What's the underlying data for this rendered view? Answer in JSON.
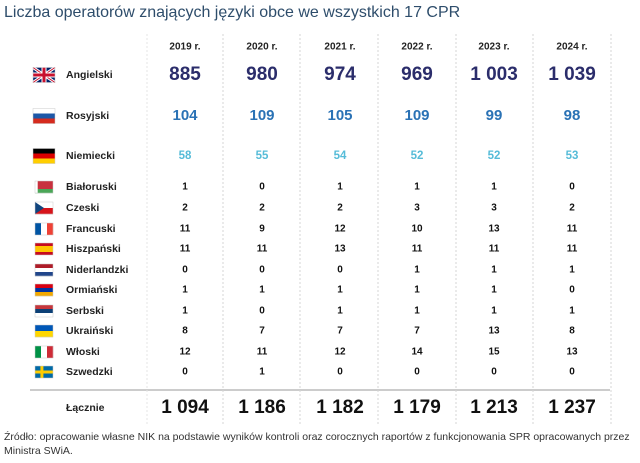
{
  "title": "Liczba operatorów znających języki obce we wszystkich 17 CPR",
  "table": {
    "columns": [
      "2019 r.",
      "2020 r.",
      "2021 r.",
      "2022 r.",
      "2023 r.",
      "2024 r."
    ],
    "rows": [
      {
        "label": "Angielski",
        "cells": [
          "885",
          "980",
          "974",
          "969",
          "1 003",
          "1 039"
        ]
      },
      {
        "label": "Rosyjski",
        "cells": [
          "104",
          "109",
          "105",
          "109",
          "99",
          "98"
        ]
      },
      {
        "label": "Niemiecki",
        "cells": [
          "58",
          "55",
          "54",
          "52",
          "52",
          "53"
        ]
      },
      {
        "label": "Białoruski",
        "cells": [
          "1",
          "0",
          "1",
          "1",
          "1",
          "0"
        ]
      },
      {
        "label": "Czeski",
        "cells": [
          "2",
          "2",
          "2",
          "3",
          "3",
          "2"
        ]
      },
      {
        "label": "Francuski",
        "cells": [
          "11",
          "9",
          "12",
          "10",
          "13",
          "11"
        ]
      },
      {
        "label": "Hiszpański",
        "cells": [
          "11",
          "11",
          "13",
          "11",
          "11",
          "11"
        ]
      },
      {
        "label": "Niderlandzki",
        "cells": [
          "0",
          "0",
          "0",
          "1",
          "1",
          "1"
        ]
      },
      {
        "label": "Ormiański",
        "cells": [
          "1",
          "1",
          "1",
          "1",
          "1",
          "0"
        ]
      },
      {
        "label": "Serbski",
        "cells": [
          "1",
          "0",
          "1",
          "1",
          "1",
          "1"
        ]
      },
      {
        "label": "Ukraiński",
        "cells": [
          "8",
          "7",
          "7",
          "7",
          "13",
          "8"
        ]
      },
      {
        "label": "Włoski",
        "cells": [
          "12",
          "11",
          "12",
          "14",
          "15",
          "13"
        ]
      },
      {
        "label": "Szwedzki",
        "cells": [
          "0",
          "1",
          "0",
          "0",
          "0",
          "0"
        ]
      }
    ],
    "total": {
      "label": "Łącznie",
      "cells": [
        "1 094",
        "1 186",
        "1 182",
        "1 179",
        "1 213",
        "1 237"
      ]
    }
  },
  "source": "Źródło: opracowanie własne NIK na podstawie wyników kontroli oraz corocznych raportów z funkcjonowania SPR opracowanych przez Ministra SWiA."
}
